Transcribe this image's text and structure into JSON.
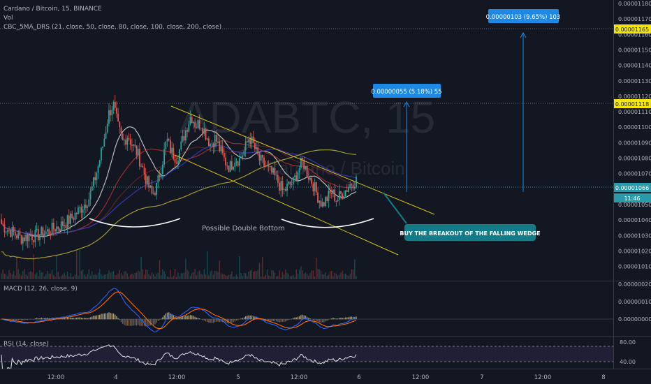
{
  "header": {
    "symbol_line": "Cardano / Bitcoin, 15, BINANCE",
    "vol_label": "Vol",
    "ma_label": "CBC_5MA_DRS (21, close, 50, close, 80, close, 100, close, 200, close)"
  },
  "watermark": {
    "main": "ADABTC, 15",
    "sub": "Cardano / Bitcoin"
  },
  "panes": {
    "macd_label": "MACD (12, 26, close, 9)",
    "rsi_label": "RSI (14, close)"
  },
  "annotations": {
    "pattern_label": "Possible Double Bottom",
    "callout": "BUY THE BREAKOUT OF THE FALLING WEDGE",
    "target1": "0.00000055 (5.18%) 55",
    "target2": "0.00000103 (9.65%) 103"
  },
  "price_axis": {
    "ticks": [
      "0.00001180",
      "0.00001170",
      "0.00001160",
      "0.00001150",
      "0.00001140",
      "0.00001130",
      "0.00001120",
      "0.00001110",
      "0.00001100",
      "0.00001090",
      "0.00001080",
      "0.00001070",
      "0.00001060",
      "0.00001050",
      "0.00001040",
      "0.00001030",
      "0.00001020",
      "0.00001010"
    ],
    "tick_values": [
      1.18e-05,
      1.17e-05,
      1.16e-05,
      1.15e-05,
      1.14e-05,
      1.13e-05,
      1.12e-05,
      1.11e-05,
      1.1e-05,
      1.09e-05,
      1.08e-05,
      1.07e-05,
      1.06e-05,
      1.05e-05,
      1.04e-05,
      1.03e-05,
      1.02e-05,
      1.01e-05
    ],
    "current_price": "0.00001066",
    "countdown": "11:46",
    "target_label_1": "0.00001118",
    "target_label_2": "0.00001165",
    "target_value_1": 1.118e-05,
    "target_value_2": 1.165e-05,
    "current_value": 1.066e-05
  },
  "macd_axis": {
    "ticks": [
      "0.00000020",
      "0.00000010",
      "0.00000000"
    ]
  },
  "rsi_axis": {
    "ticks": [
      "80.00",
      "40.00"
    ]
  },
  "time_axis": {
    "ticks": [
      "12:00",
      "4",
      "12:00",
      "5",
      "12:00",
      "6",
      "12:00",
      "7",
      "12:00",
      "8"
    ]
  },
  "colors": {
    "background": "#131722",
    "up": "#26a69a",
    "down": "#ef5350",
    "current_price": "#2a9aa8",
    "target_label": "#f5e60a",
    "callout": "#127b87",
    "target_box": "#1e88e5",
    "wedge_line": "#d4c21f",
    "rsi_band": "#7e57c2"
  },
  "chart_data": {
    "type": "candlestick",
    "symbol": "ADABTC",
    "interval": "15",
    "exchange": "BINANCE",
    "ylim": [
      1.01e-05,
      1.18e-05
    ],
    "close_series": [
      1.0375e-05,
      1.0345e-05,
      1.0325e-05,
      1.0305e-05,
      1.0285e-05,
      1.029e-05,
      1.03e-05,
      1.0295e-05,
      1.031e-05,
      1.032e-05,
      1.033e-05,
      1.035e-05,
      1.036e-05,
      1.038e-05,
      1.04e-05,
      1.043e-05,
      1.0465e-05,
      1.05e-05,
      1.054e-05,
      1.064e-05,
      1.076e-05,
      1.09e-05,
      1.108e-05,
      1.115e-05,
      1.1e-05,
      1.09e-05,
      1.095e-05,
      1.088e-05,
      1.083e-05,
      1.074e-05,
      1.064e-05,
      1.056e-05,
      1.062e-05,
      1.076e-05,
      1.092e-05,
      1.084e-05,
      1.08e-05,
      1.088e-05,
      1.099e-05,
      1.108e-05,
      1.101e-05,
      1.103e-05,
      1.096e-05,
      1.089e-05,
      1.093e-05,
      1.085e-05,
      1.078e-05,
      1.074e-05,
      1.08e-05,
      1.079e-05,
      1.085e-05,
      1.094e-05,
      1.087e-05,
      1.079e-05,
      1.076e-05,
      1.072e-05,
      1.069e-05,
      1.064e-05,
      1.058e-05,
      1.062e-05,
      1.064e-05,
      1.072e-05,
      1.078e-05,
      1.07e-05,
      1.064e-05,
      1.056e-05,
      1.05e-05,
      1.054e-05,
      1.058e-05,
      1.053e-05,
      1.057e-05,
      1.06e-05,
      1.064e-05,
      1.066e-05
    ],
    "series": [
      {
        "name": "Vol",
        "type": "volume"
      },
      {
        "name": "CBC_5MA_DRS",
        "type": "moving-averages",
        "periods": [
          21,
          50,
          80,
          100,
          200
        ]
      },
      {
        "name": "MACD (12, 26, close, 9)",
        "type": "oscillator"
      },
      {
        "name": "RSI (14, close)",
        "type": "oscillator",
        "bands": [
          40,
          80
        ]
      }
    ],
    "targets": [
      {
        "label": "0.00000055 (5.18%) 55",
        "price": 1.118e-05
      },
      {
        "label": "0.00000103 (9.65%) 103",
        "price": 1.165e-05
      }
    ],
    "x_ticks": [
      "12:00",
      "4",
      "12:00",
      "5",
      "12:00",
      "6",
      "12:00",
      "7",
      "12:00",
      "8"
    ],
    "grid": false
  }
}
